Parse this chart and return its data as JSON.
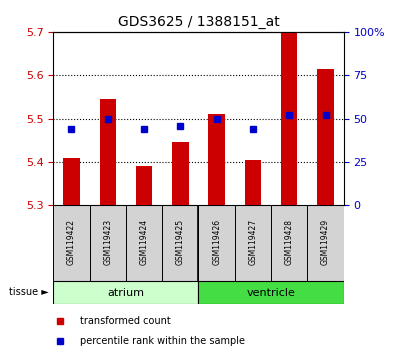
{
  "title": "GDS3625 / 1388151_at",
  "samples": [
    "GSM119422",
    "GSM119423",
    "GSM119424",
    "GSM119425",
    "GSM119426",
    "GSM119427",
    "GSM119428",
    "GSM119429"
  ],
  "transformed_counts": [
    5.41,
    5.545,
    5.39,
    5.445,
    5.51,
    5.405,
    5.7,
    5.615
  ],
  "percentile_ranks": [
    44,
    50,
    44,
    46,
    50,
    44,
    52,
    52
  ],
  "ylim_left": [
    5.3,
    5.7
  ],
  "yticks_left": [
    5.3,
    5.4,
    5.5,
    5.6,
    5.7
  ],
  "ylim_right": [
    0,
    100
  ],
  "yticks_right": [
    0,
    25,
    50,
    75,
    100
  ],
  "yticklabels_right": [
    "0",
    "25",
    "50",
    "75",
    "100%"
  ],
  "bar_color": "#cc0000",
  "dot_color": "#0000cc",
  "bar_bottom": 5.3,
  "tissue_groups": [
    {
      "label": "atrium",
      "start": 0,
      "end": 4,
      "color": "#ccffcc"
    },
    {
      "label": "ventricle",
      "start": 4,
      "end": 8,
      "color": "#44dd44"
    }
  ],
  "legend_items": [
    {
      "label": "transformed count",
      "color": "#cc0000"
    },
    {
      "label": "percentile rank within the sample",
      "color": "#0000cc"
    }
  ],
  "left_tickcolor": "#cc0000",
  "right_tickcolor": "#0000cc",
  "bg_color": "#ffffff"
}
